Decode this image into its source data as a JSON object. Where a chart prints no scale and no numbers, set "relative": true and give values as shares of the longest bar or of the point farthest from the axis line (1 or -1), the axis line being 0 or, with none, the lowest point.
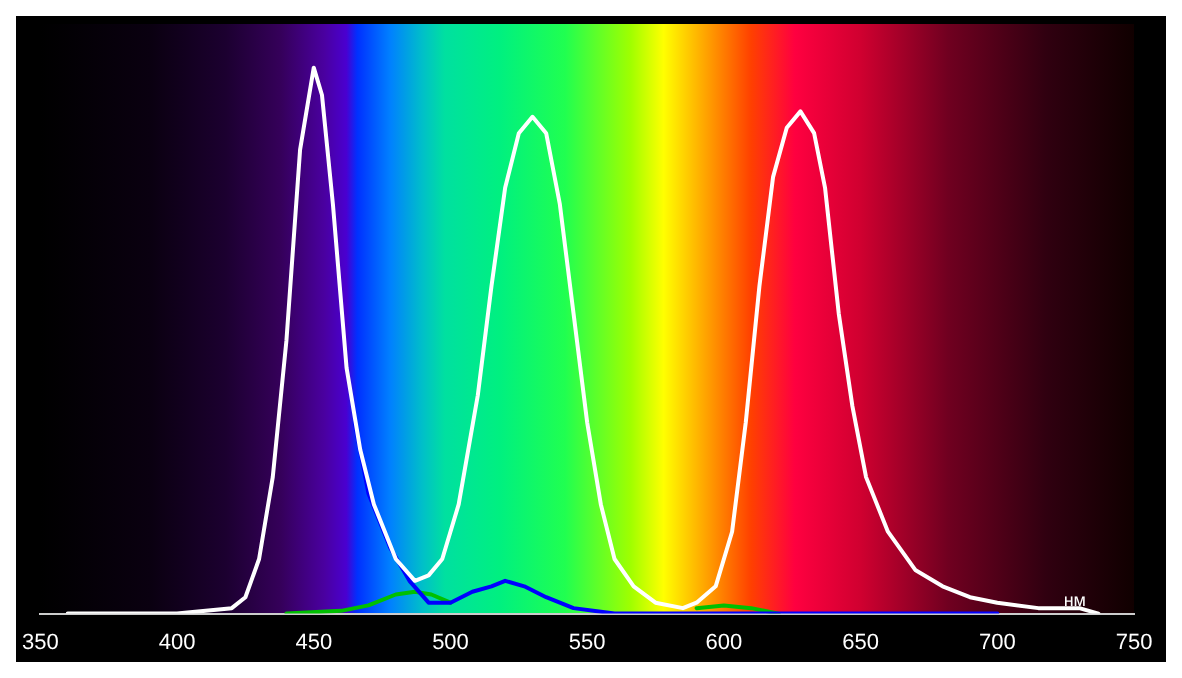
{
  "chart_data": {
    "type": "line",
    "xlabel": "нм",
    "relative": true,
    "xlim": [
      350,
      750
    ],
    "xticks": [
      350,
      400,
      450,
      500,
      550,
      600,
      650,
      700,
      750
    ],
    "tick_labels": "x",
    "grid": false,
    "legend": false,
    "marker": "none",
    "line_style": "solid",
    "series": [
      {
        "color": "#ffffff",
        "x": [
          360,
          400,
          420,
          425,
          430,
          435,
          440,
          445,
          450,
          453,
          457,
          462,
          467,
          472,
          480,
          487,
          492,
          497,
          503,
          510,
          515,
          520,
          525,
          530,
          535,
          540,
          545,
          550,
          555,
          560,
          567,
          575,
          585,
          590,
          597,
          603,
          608,
          613,
          618,
          623,
          628,
          633,
          637,
          642,
          647,
          652,
          660,
          670,
          680,
          690,
          700,
          715,
          730,
          737
        ],
        "values": [
          0,
          0,
          0.01,
          0.03,
          0.1,
          0.25,
          0.5,
          0.85,
          1,
          0.95,
          0.75,
          0.45,
          0.3,
          0.2,
          0.1,
          0.06,
          0.07,
          0.1,
          0.2,
          0.4,
          0.6,
          0.78,
          0.88,
          0.91,
          0.88,
          0.75,
          0.55,
          0.35,
          0.2,
          0.1,
          0.05,
          0.02,
          0.01,
          0.02,
          0.05,
          0.15,
          0.35,
          0.6,
          0.8,
          0.89,
          0.92,
          0.88,
          0.78,
          0.55,
          0.38,
          0.25,
          0.15,
          0.08,
          0.05,
          0.03,
          0.02,
          0.01,
          0.01,
          0
        ]
      },
      {
        "color": "#0000ff",
        "x": [
          465,
          470,
          478,
          485,
          492,
          500,
          508,
          515,
          520,
          527,
          535,
          545,
          560,
          600,
          650,
          700
        ],
        "values": [
          0.35,
          0.22,
          0.12,
          0.06,
          0.02,
          0.02,
          0.04,
          0.05,
          0.06,
          0.05,
          0.03,
          0.01,
          0,
          0,
          0,
          0
        ]
      },
      {
        "color": "#00c000",
        "x": [
          440,
          460,
          470,
          480,
          487,
          493,
          500,
          580,
          590,
          600,
          610,
          620
        ],
        "values": [
          0,
          0.005,
          0.015,
          0.035,
          0.04,
          0.035,
          0.02,
          null,
          0.01,
          0.015,
          0.01,
          0
        ]
      }
    ]
  }
}
